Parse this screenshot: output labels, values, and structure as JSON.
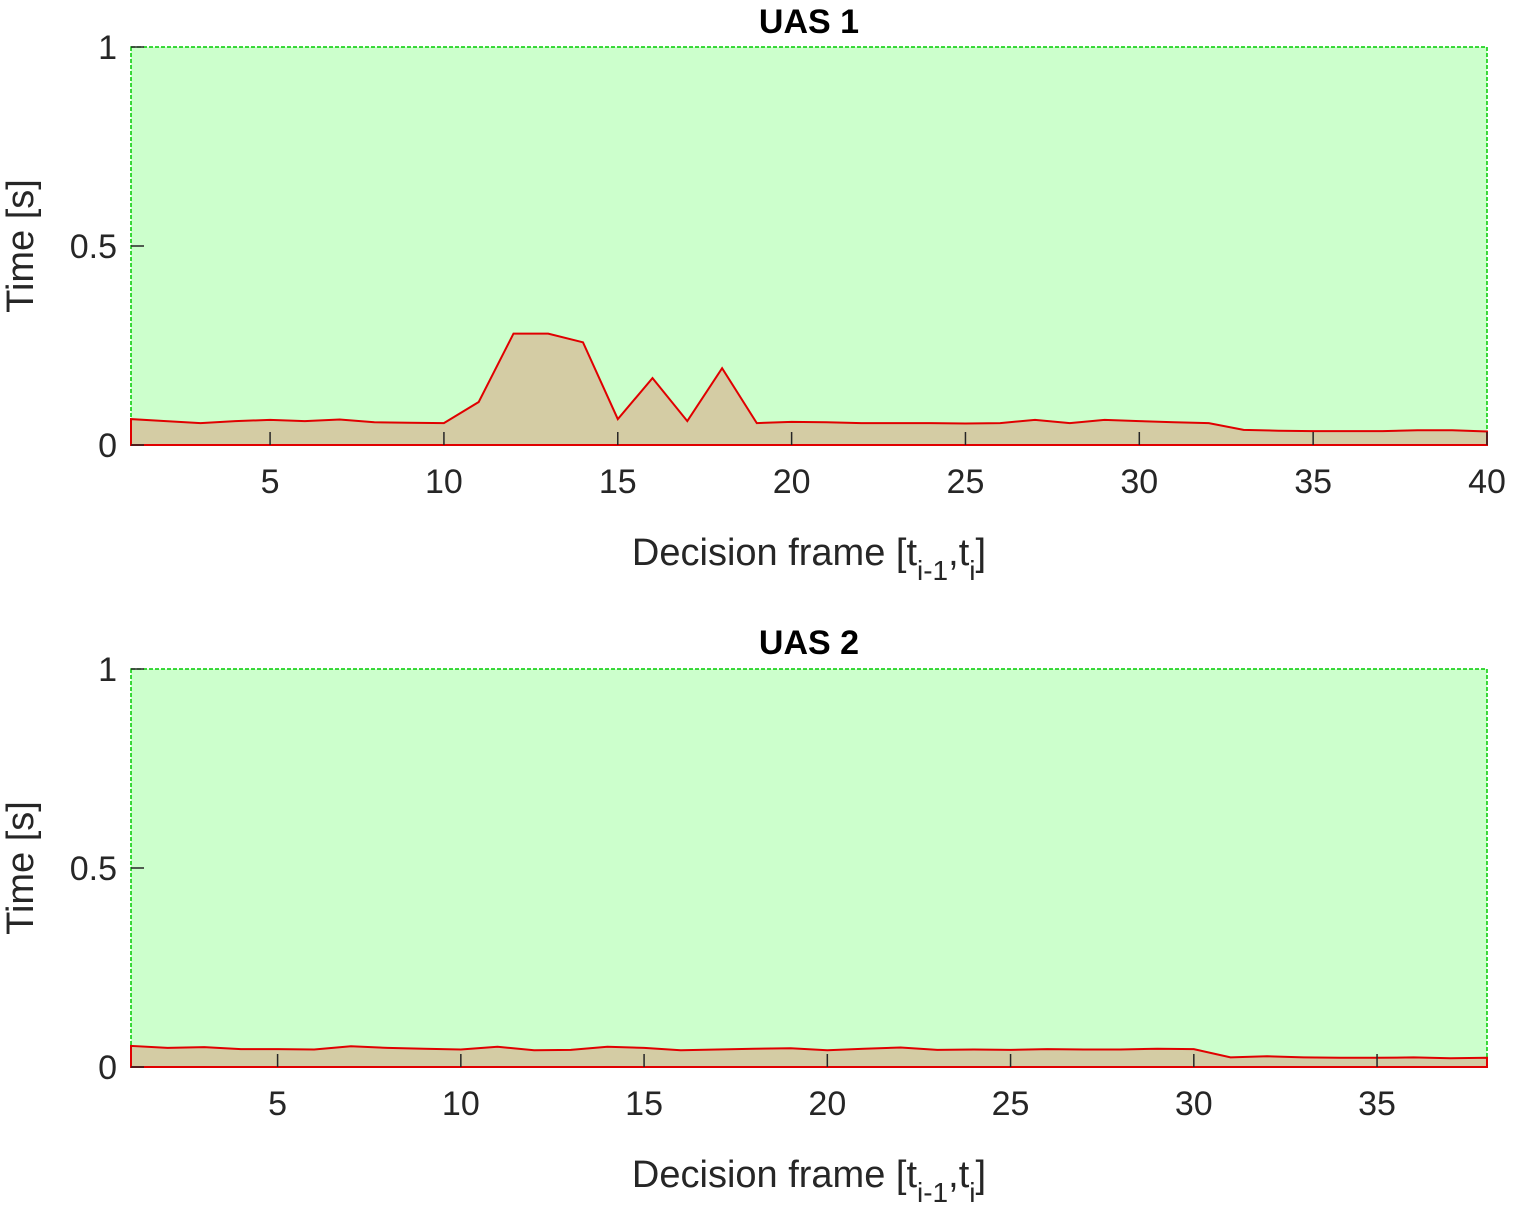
{
  "colors": {
    "allowed_region": "#ccffcc",
    "allowed_border": "#00cc00",
    "used_fill": "#d4cca4",
    "used_line": "#e00000",
    "text": "#262626"
  },
  "chart_data": [
    {
      "type": "area",
      "title": "UAS 1",
      "xlabel": "Decision frame [t",
      "xlabel_sub1": "i-1",
      "xlabel_sep": ",t",
      "xlabel_sub2": "i",
      "xlabel_end": "]",
      "ylabel": "Time [s]",
      "xlim": [
        1,
        40
      ],
      "ylim": [
        0,
        1
      ],
      "xticks": [
        5,
        10,
        15,
        20,
        25,
        30,
        35,
        40
      ],
      "yticks": [
        0,
        0.5,
        1
      ],
      "ytick_labels": [
        "0",
        "0.5",
        "1"
      ],
      "allowed_time": 1,
      "x": [
        1,
        2,
        3,
        4,
        5,
        6,
        7,
        8,
        9,
        10,
        11,
        12,
        13,
        14,
        15,
        16,
        17,
        18,
        19,
        20,
        21,
        22,
        23,
        24,
        25,
        26,
        27,
        28,
        29,
        30,
        31,
        32,
        33,
        34,
        35,
        36,
        37,
        38,
        39,
        40
      ],
      "values": [
        0.065,
        0.06,
        0.055,
        0.06,
        0.063,
        0.06,
        0.064,
        0.057,
        0.056,
        0.055,
        0.108,
        0.28,
        0.28,
        0.258,
        0.065,
        0.168,
        0.06,
        0.193,
        0.055,
        0.058,
        0.057,
        0.055,
        0.055,
        0.055,
        0.054,
        0.055,
        0.063,
        0.055,
        0.063,
        0.06,
        0.057,
        0.055,
        0.038,
        0.036,
        0.035,
        0.035,
        0.035,
        0.037,
        0.037,
        0.034
      ]
    },
    {
      "type": "area",
      "title": "UAS 2",
      "xlabel": "Decision frame [t",
      "xlabel_sub1": "i-1",
      "xlabel_sep": ",t",
      "xlabel_sub2": "i",
      "xlabel_end": "]",
      "ylabel": "Time [s]",
      "xlim": [
        1,
        38
      ],
      "ylim": [
        0,
        1
      ],
      "xticks": [
        5,
        10,
        15,
        20,
        25,
        30,
        35
      ],
      "yticks": [
        0,
        0.5,
        1
      ],
      "ytick_labels": [
        "0",
        "0.5",
        "1"
      ],
      "allowed_time": 1,
      "x": [
        1,
        2,
        3,
        4,
        5,
        6,
        7,
        8,
        9,
        10,
        11,
        12,
        13,
        14,
        15,
        16,
        17,
        18,
        19,
        20,
        21,
        22,
        23,
        24,
        25,
        26,
        27,
        28,
        29,
        30,
        31,
        32,
        33,
        34,
        35,
        36,
        37,
        38
      ],
      "values": [
        0.053,
        0.048,
        0.05,
        0.045,
        0.045,
        0.044,
        0.052,
        0.048,
        0.046,
        0.044,
        0.051,
        0.042,
        0.043,
        0.051,
        0.048,
        0.042,
        0.044,
        0.046,
        0.047,
        0.042,
        0.046,
        0.049,
        0.043,
        0.044,
        0.043,
        0.045,
        0.044,
        0.044,
        0.046,
        0.045,
        0.024,
        0.027,
        0.024,
        0.023,
        0.023,
        0.024,
        0.022,
        0.023
      ]
    }
  ]
}
